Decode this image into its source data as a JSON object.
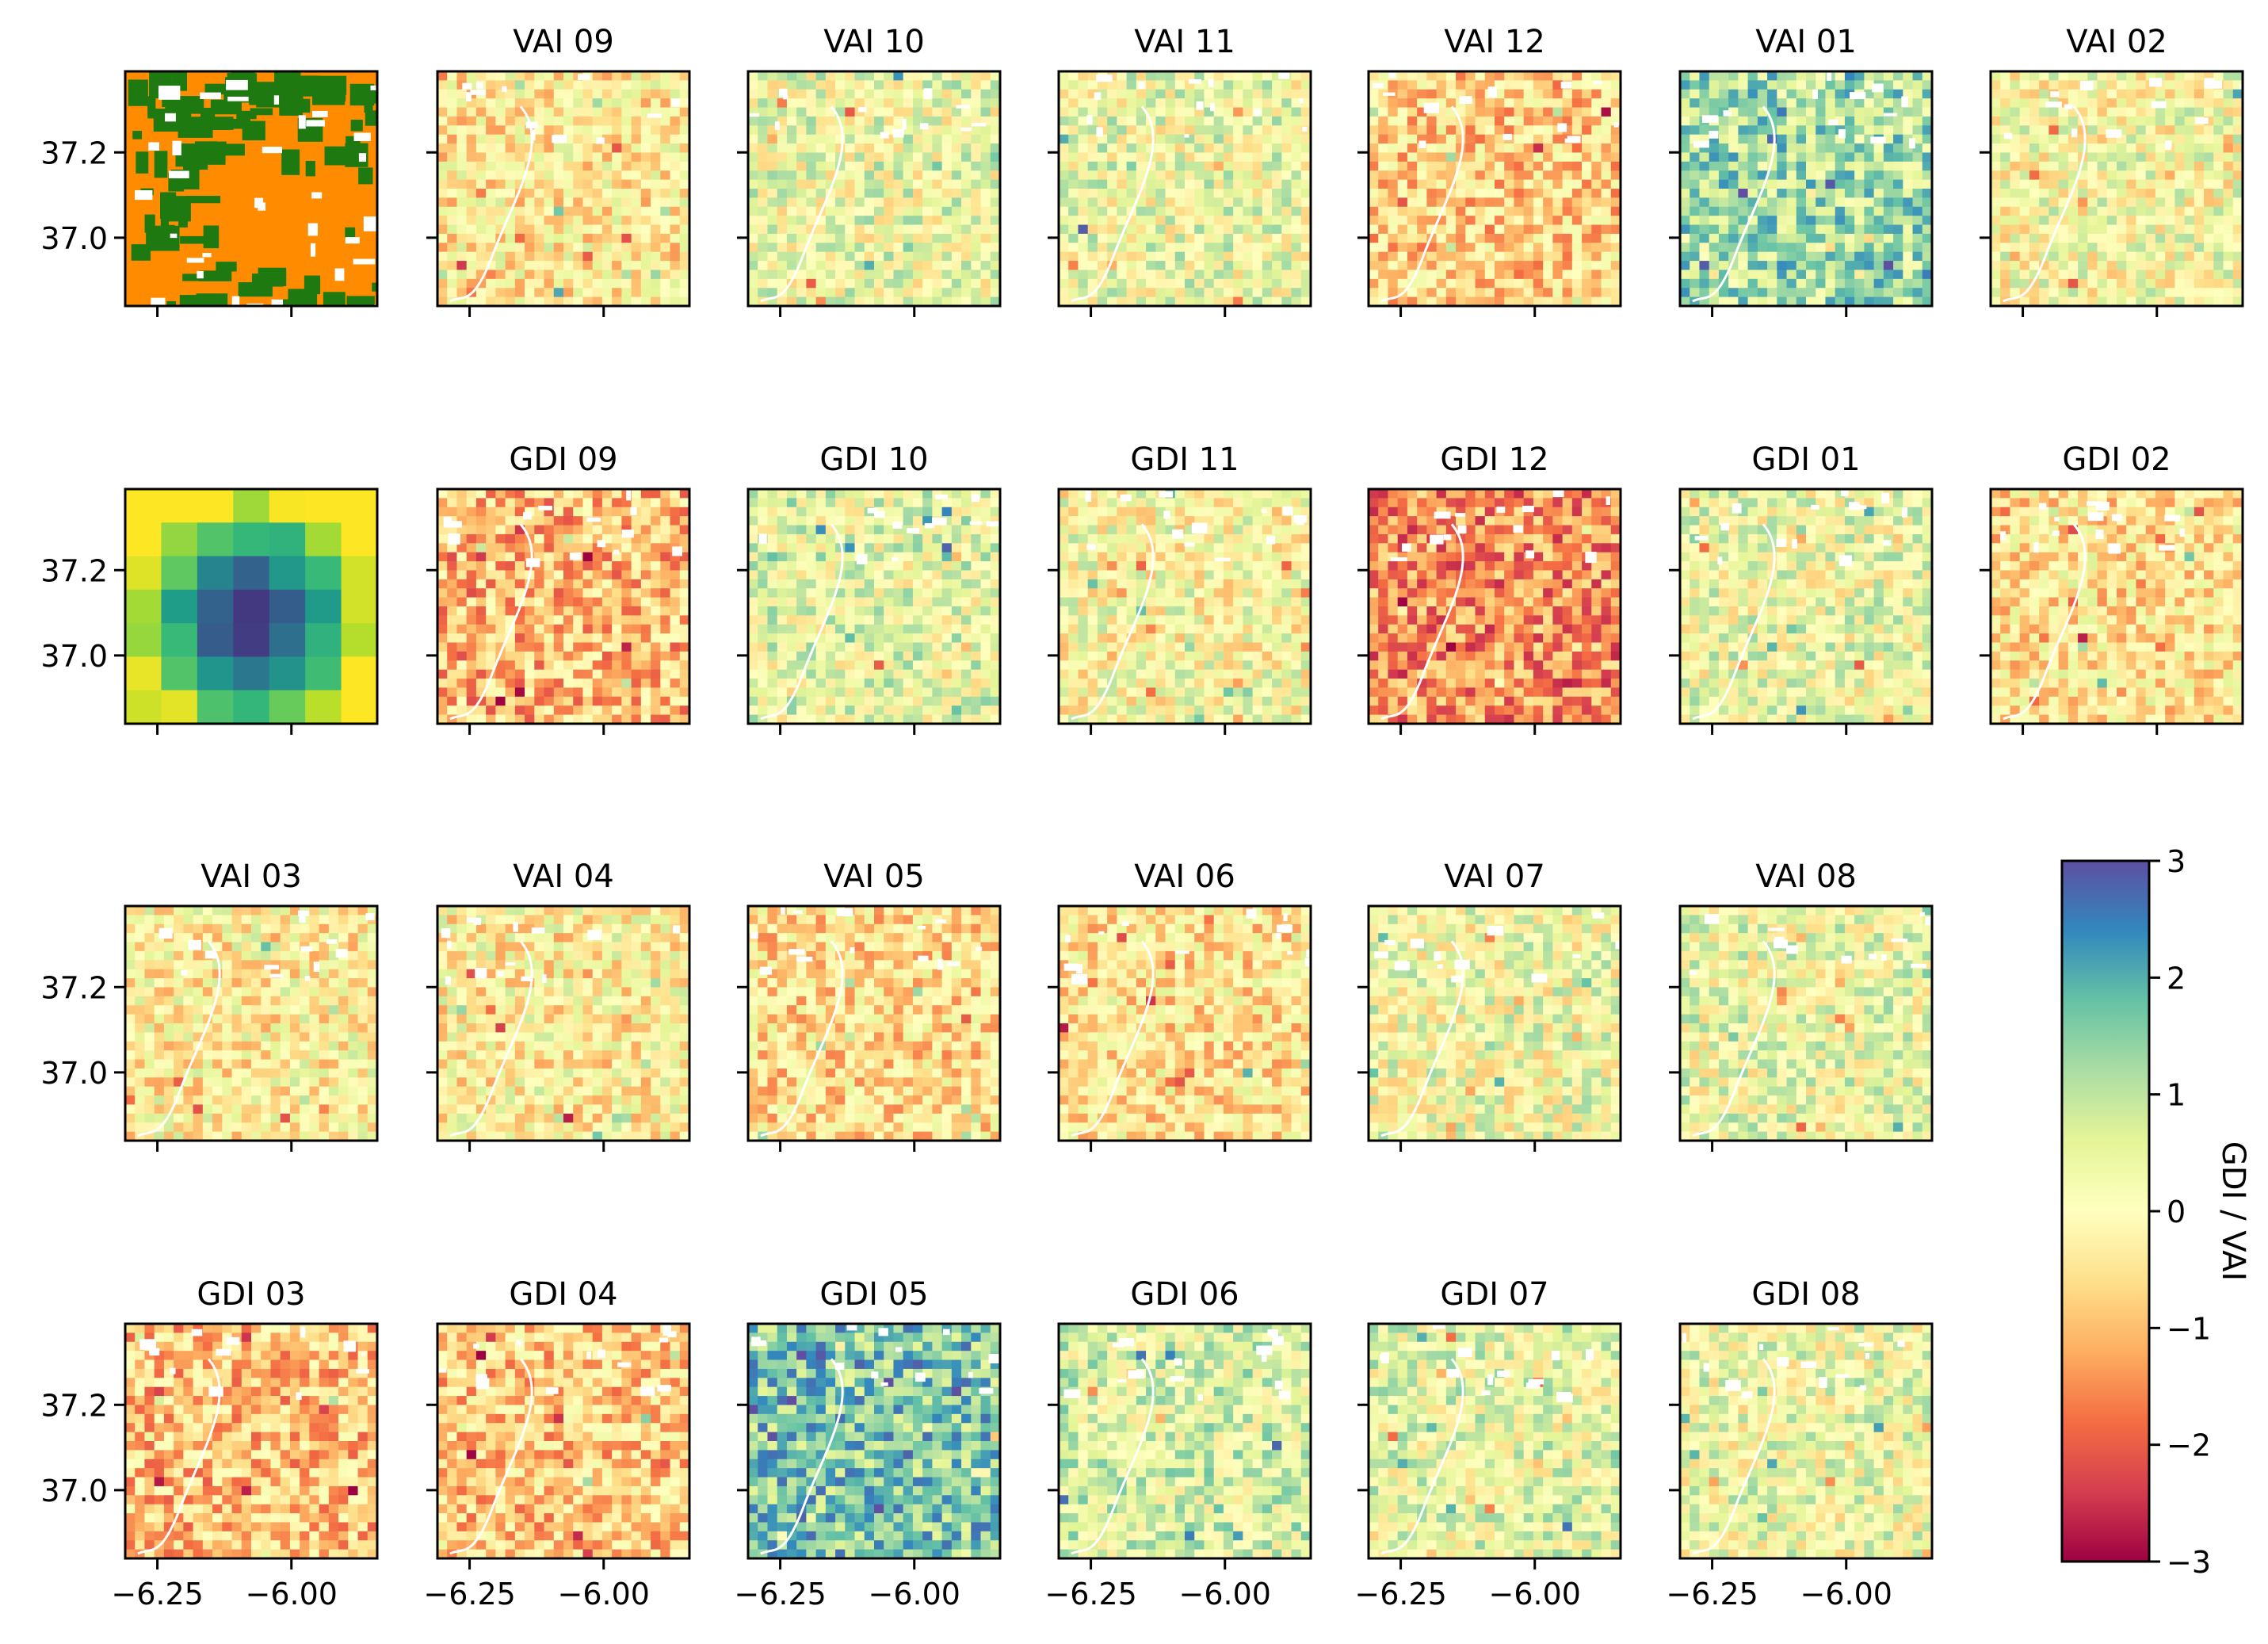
{
  "figure": {
    "colorbar": {
      "label": "GDI / VAI",
      "min": -3,
      "max": 3,
      "ticks": [
        3,
        2,
        1,
        0,
        -1,
        -2,
        -3
      ],
      "colormap": "Spectral"
    },
    "x_tick_values": [
      -6.25,
      -6.0
    ],
    "x_tick_labels": [
      "−6.25",
      "−6.00"
    ],
    "y_tick_values": [
      37.2,
      37.0
    ],
    "y_tick_labels": [
      "37.2",
      "37.0"
    ]
  },
  "colors": {
    "landcover_orange": "#ff8c00",
    "landcover_green": "#1e7a10",
    "frame": "#000000",
    "background": "#ffffff"
  },
  "chart_data": {
    "type": "heatmap",
    "title": "",
    "xlim": [
      -6.31,
      -5.84
    ],
    "ylim": [
      36.84,
      37.39
    ],
    "colorbar_label": "GDI / VAI",
    "colorbar_range": [
      -3,
      3
    ],
    "rows": [
      [
        {
          "title": "",
          "kind": "landcover",
          "mean": 0
        },
        {
          "title": "VAI 09",
          "mean": -0.3
        },
        {
          "title": "VAI 10",
          "mean": 0.3
        },
        {
          "title": "VAI 11",
          "mean": 0.3
        },
        {
          "title": "VAI 12",
          "mean": -0.7
        },
        {
          "title": "VAI 01",
          "mean": 1.2
        },
        {
          "title": "VAI 02",
          "mean": 0.1
        }
      ],
      [
        {
          "title": "",
          "kind": "coarse",
          "mean": 0
        },
        {
          "title": "GDI 09",
          "mean": -1.0
        },
        {
          "title": "GDI 10",
          "mean": 0.4
        },
        {
          "title": "GDI 11",
          "mean": 0.05
        },
        {
          "title": "GDI 12",
          "mean": -1.5
        },
        {
          "title": "GDI 01",
          "mean": 0.3
        },
        {
          "title": "GDI 02",
          "mean": -0.4
        }
      ],
      [
        {
          "title": "VAI 03",
          "mean": -0.2
        },
        {
          "title": "VAI 04",
          "mean": -0.2
        },
        {
          "title": "VAI 05",
          "mean": -0.5
        },
        {
          "title": "VAI 06",
          "mean": -0.4
        },
        {
          "title": "VAI 07",
          "mean": 0.2
        },
        {
          "title": "VAI 08",
          "mean": 0.3
        }
      ],
      [
        {
          "title": "GDI 03",
          "mean": -0.9
        },
        {
          "title": "GDI 04",
          "mean": -0.8
        },
        {
          "title": "GDI 05",
          "mean": 1.6
        },
        {
          "title": "GDI 06",
          "mean": 0.6
        },
        {
          "title": "GDI 07",
          "mean": 0.4
        },
        {
          "title": "GDI 08",
          "mean": 0.3
        }
      ]
    ]
  }
}
